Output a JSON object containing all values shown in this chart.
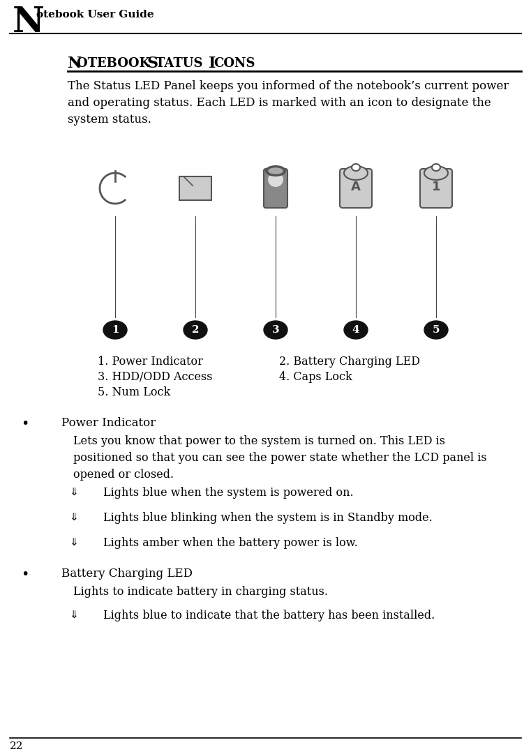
{
  "bg_color": "#ffffff",
  "header_N": "N",
  "header_rest": "otebook User Guide",
  "section_title": "Notebook Status Icons",
  "intro_text": "The Status LED Panel keeps you informed of the notebook’s current power\nand operating status. Each LED is marked with an icon to designate the\nsystem status.",
  "legend_items": [
    [
      "1. Power Indicator",
      "2. Battery Charging LED"
    ],
    [
      "3. HDD/ODD Access",
      "4. Caps Lock"
    ],
    [
      "5. Num Lock",
      ""
    ]
  ],
  "bullet_sections": [
    {
      "title": "Power Indicator",
      "body": "Lets you know that power to the system is turned on. This LED is\npositioned so that you can see the power state whether the LCD panel is\nopened or closed.",
      "items": [
        "Lights blue when the system is powered on.",
        "Lights blue blinking when the system is in Standby mode.",
        "Lights amber when the battery power is low."
      ]
    },
    {
      "title": "Battery Charging LED",
      "body": "Lights to indicate battery in charging status.",
      "items": [
        "Lights blue to indicate that the battery has been installed."
      ]
    }
  ],
  "icon_numbers": [
    "1",
    "2",
    "3",
    "4",
    "5"
  ],
  "footer_number": "22",
  "text_color": "#000000",
  "dark_gray": "#555555",
  "med_gray": "#888888",
  "light_gray": "#cccccc",
  "arrow_symbol": "⇓"
}
